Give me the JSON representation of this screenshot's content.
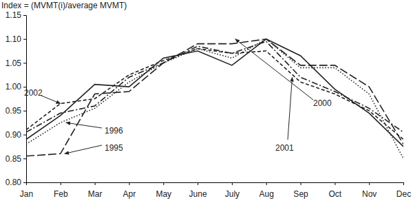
{
  "chart_data": {
    "type": "line",
    "y_label": "Index = (MVMT(i)/average MVMT)",
    "categories": [
      "Jan",
      "Feb",
      "Mar",
      "Apr",
      "May",
      "June",
      "July",
      "Aug",
      "Sep",
      "Oct",
      "Nov",
      "Dec"
    ],
    "series": [
      {
        "name": "1995",
        "color": "#222222",
        "line_style": "longdash",
        "values": [
          0.855,
          0.86,
          0.985,
          0.99,
          1.05,
          1.09,
          1.09,
          1.1,
          1.045,
          1.045,
          1.0,
          0.88
        ]
      },
      {
        "name": "1996",
        "color": "#222222",
        "line_style": "dotted",
        "values": [
          0.88,
          0.925,
          0.955,
          1.01,
          1.05,
          1.08,
          1.06,
          1.1,
          1.04,
          1.04,
          0.985,
          0.85
        ]
      },
      {
        "name": "2000",
        "color": "#222222",
        "line_style": "solid",
        "values": [
          0.89,
          0.94,
          1.005,
          1.0,
          1.06,
          1.075,
          1.045,
          1.1,
          1.065,
          0.995,
          0.945,
          0.875
        ]
      },
      {
        "name": "2001",
        "color": "#222222",
        "line_style": "dashdot",
        "values": [
          0.905,
          0.945,
          0.96,
          1.02,
          1.05,
          1.085,
          1.07,
          1.095,
          1.02,
          0.99,
          0.955,
          0.905
        ]
      },
      {
        "name": "2002",
        "color": "#222222",
        "line_style": "dashed",
        "values": [
          0.91,
          0.965,
          0.975,
          1.025,
          1.055,
          1.08,
          1.07,
          1.075,
          1.01,
          0.985,
          0.95,
          0.89
        ]
      }
    ],
    "ylim": [
      0.8,
      1.15
    ],
    "yticks": [
      {
        "value": 0.8,
        "label": "0.80"
      },
      {
        "value": 0.85,
        "label": "0.85"
      },
      {
        "value": 0.9,
        "label": "0.90"
      },
      {
        "value": 0.95,
        "label": "0.95"
      },
      {
        "value": 1.0,
        "label": "1.00"
      },
      {
        "value": 1.05,
        "label": "1.05"
      },
      {
        "value": 1.1,
        "label": "1.10"
      },
      {
        "value": 1.15,
        "label": "1.15"
      }
    ],
    "grid": false
  }
}
